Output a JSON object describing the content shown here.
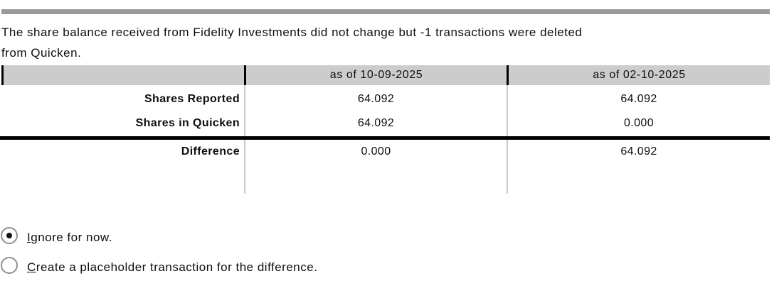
{
  "message_lines": [
    "The share balance received from Fidelity Investments did not change but -1 transactions were deleted",
    "from Quicken."
  ],
  "table": {
    "col_headers": [
      "",
      "as of 10-09-2025",
      "as of 02-10-2025"
    ],
    "rows": [
      {
        "label": "Shares Reported",
        "values": [
          "64.092",
          "64.092"
        ]
      },
      {
        "label": "Shares in Quicken",
        "values": [
          "64.092",
          "0.000"
        ]
      },
      {
        "label": "Difference",
        "values": [
          "0.000",
          "64.092"
        ]
      }
    ]
  },
  "options": [
    {
      "label": "Ignore for now.",
      "selected": true
    },
    {
      "label": "Create a placeholder transaction for the difference.",
      "selected": false
    }
  ],
  "colors": {
    "divider_bar": "#9a9a9a",
    "table_header_bg": "#cccccc",
    "table_border_heavy": "#000000",
    "table_grid_line": "#c9c9c9",
    "text": "#0e0e0e",
    "radio_border": "#8f8f8f"
  }
}
